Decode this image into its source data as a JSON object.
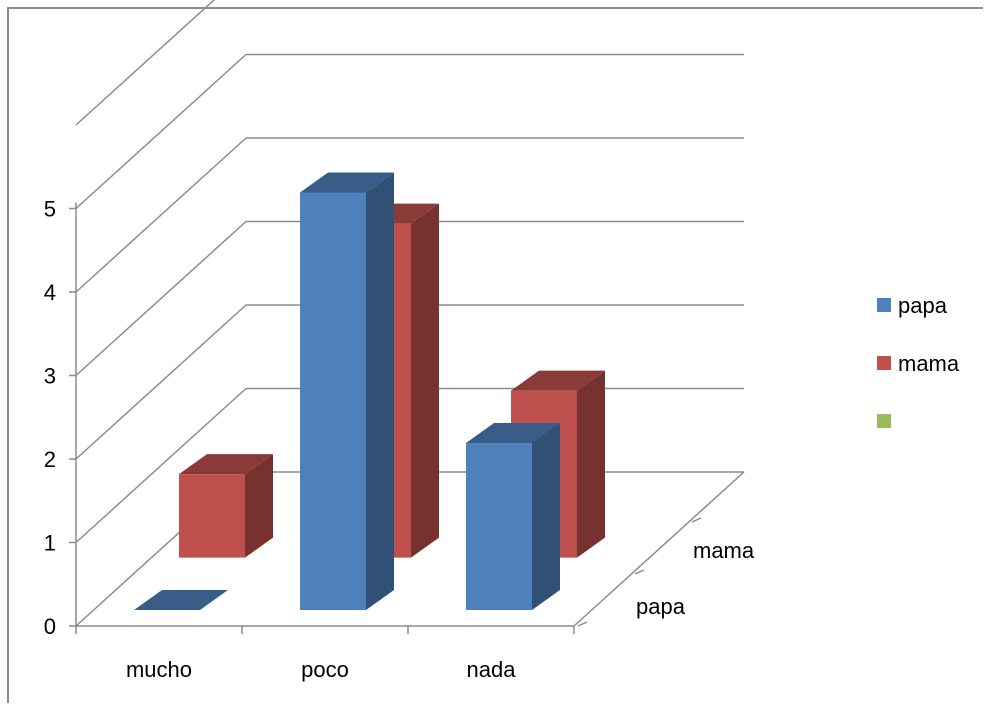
{
  "chart_data": {
    "type": "bar",
    "subtype": "3d-column",
    "title": "",
    "xlabel": "",
    "ylabel": "",
    "categories": [
      "mucho",
      "poco",
      "nada"
    ],
    "series": [
      {
        "name": "papa",
        "values": [
          0,
          5,
          2
        ],
        "color": "#4f81bd"
      },
      {
        "name": "mama",
        "values": [
          1,
          4,
          2
        ],
        "color": "#c0504d"
      },
      {
        "name": "",
        "values": [
          null,
          null,
          null
        ],
        "color": "#9bbb59"
      }
    ],
    "depth_labels": [
      "papa",
      "mama"
    ],
    "ylim": [
      0,
      5
    ],
    "yticks": [
      "0",
      "1",
      "2",
      "3",
      "4",
      "5"
    ],
    "grid": true,
    "legend": {
      "position": "right",
      "entries": [
        {
          "label": "papa",
          "color": "#4f81bd"
        },
        {
          "label": "mama",
          "color": "#c0504d"
        },
        {
          "label": "",
          "color": "#9bbb59"
        }
      ]
    }
  }
}
